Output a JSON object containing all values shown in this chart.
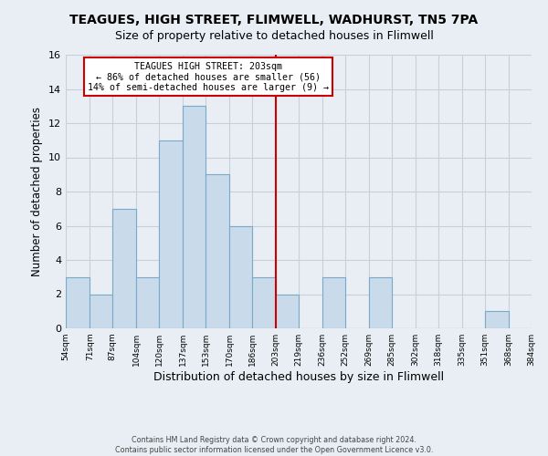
{
  "title": "TEAGUES, HIGH STREET, FLIMWELL, WADHURST, TN5 7PA",
  "subtitle": "Size of property relative to detached houses in Flimwell",
  "xlabel": "Distribution of detached houses by size in Flimwell",
  "ylabel": "Number of detached properties",
  "bar_color": "#c9daea",
  "bar_edge_color": "#7aaac8",
  "annotation_title": "TEAGUES HIGH STREET: 203sqm",
  "annotation_line1": "← 86% of detached houses are smaller (56)",
  "annotation_line2": "14% of semi-detached houses are larger (9) →",
  "vline_x": 203,
  "vline_color": "#cc0000",
  "bins": [
    54,
    71,
    87,
    104,
    120,
    137,
    153,
    170,
    186,
    203,
    219,
    236,
    252,
    269,
    285,
    302,
    318,
    335,
    351,
    368,
    384
  ],
  "counts": [
    3,
    2,
    7,
    3,
    11,
    13,
    9,
    6,
    3,
    2,
    0,
    3,
    0,
    3,
    0,
    0,
    0,
    0,
    1,
    0
  ],
  "tick_labels": [
    "54sqm",
    "71sqm",
    "87sqm",
    "104sqm",
    "120sqm",
    "137sqm",
    "153sqm",
    "170sqm",
    "186sqm",
    "203sqm",
    "219sqm",
    "236sqm",
    "252sqm",
    "269sqm",
    "285sqm",
    "302sqm",
    "318sqm",
    "335sqm",
    "351sqm",
    "368sqm",
    "384sqm"
  ],
  "ylim": [
    0,
    16
  ],
  "footer1": "Contains HM Land Registry data © Crown copyright and database right 2024.",
  "footer2": "Contains public sector information licensed under the Open Government Licence v3.0.",
  "background_color": "#e8eef4",
  "plot_background_color": "#e8eef4",
  "grid_color": "#c5d0dc"
}
